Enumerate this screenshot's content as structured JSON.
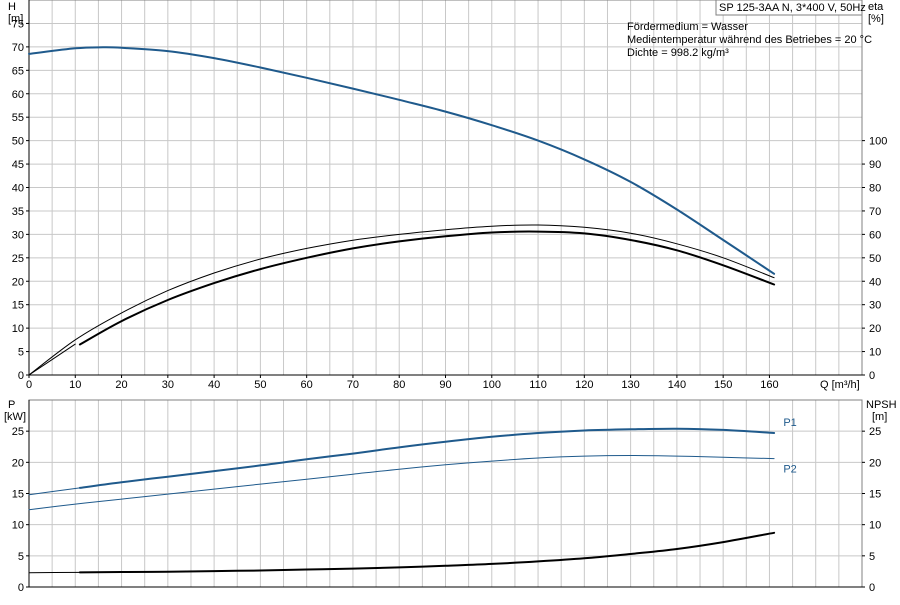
{
  "header": {
    "pump_model": "SP 125-3AA N, 3*400 V, 50Hz",
    "info_lines": [
      "Fördermedium = Wasser",
      "Medientemperatur während des Betriebes = 20 °C",
      "Dichte = 998.2 kg/m³"
    ]
  },
  "chart_data": [
    {
      "type": "line",
      "x_label": "Q [m³/h]",
      "x_ticks": [
        0,
        10,
        20,
        30,
        40,
        50,
        60,
        70,
        80,
        90,
        100,
        110,
        120,
        130,
        140,
        150,
        160
      ],
      "xlim": [
        0,
        180
      ],
      "y_left": {
        "name": "H",
        "unit": "[m]",
        "ticks": [
          0,
          5,
          10,
          15,
          20,
          25,
          30,
          35,
          40,
          45,
          50,
          55,
          60,
          65,
          70,
          75
        ],
        "lim": [
          0,
          80
        ]
      },
      "y_right": {
        "name": "eta",
        "unit": "[%]",
        "ticks": [
          0,
          10,
          20,
          30,
          40,
          50,
          60,
          70,
          80,
          90,
          100
        ],
        "lim": [
          0,
          160
        ]
      },
      "grid": true,
      "series": [
        {
          "axis": "left",
          "color": "#1f5a8c",
          "width": 2,
          "x": [
            0,
            10,
            16,
            20,
            30,
            40,
            50,
            60,
            70,
            80,
            90,
            100,
            110,
            120,
            130,
            140,
            150,
            161
          ],
          "y": [
            68.5,
            69.7,
            69.9,
            69.8,
            69.1,
            67.6,
            65.6,
            63.4,
            61.1,
            58.7,
            56.2,
            53.3,
            50.0,
            46.0,
            41.2,
            35.3,
            28.8,
            21.6
          ]
        },
        {
          "axis": "right",
          "color": "#000000",
          "width": 1,
          "x": [
            0,
            10,
            20,
            30,
            40,
            50,
            60,
            70,
            80,
            90,
            100,
            110,
            120,
            130,
            140,
            150,
            161
          ],
          "y": [
            0,
            15,
            26.5,
            36,
            43.5,
            49.5,
            54,
            57.5,
            60,
            62,
            63.5,
            64,
            63,
            60.5,
            56,
            50,
            41.5
          ]
        },
        {
          "axis": "left",
          "color": "#000000",
          "width": 2,
          "x": [
            11,
            20,
            30,
            40,
            50,
            60,
            70,
            80,
            90,
            100,
            110,
            120,
            130,
            140,
            150,
            161
          ],
          "y": [
            6.5,
            11.5,
            16.0,
            19.6,
            22.6,
            25.0,
            27.0,
            28.5,
            29.6,
            30.4,
            30.6,
            30.2,
            28.8,
            26.6,
            23.4,
            19.3
          ]
        },
        {
          "axis": "left",
          "color": "#000000",
          "width": 1,
          "x": [
            0,
            10
          ],
          "y": [
            0,
            6.6
          ]
        }
      ]
    },
    {
      "type": "line",
      "xlim": [
        0,
        180
      ],
      "x_ticks": [
        0,
        10,
        20,
        30,
        40,
        50,
        60,
        70,
        80,
        90,
        100,
        110,
        120,
        130,
        140,
        150,
        160
      ],
      "y_left": {
        "name": "P",
        "unit": "[kW]",
        "ticks": [
          0,
          5,
          10,
          15,
          20,
          25
        ],
        "lim": [
          0,
          30
        ]
      },
      "y_right": {
        "name": "NPSH",
        "unit": "[m]",
        "ticks": [
          0,
          5,
          10,
          15,
          20,
          25
        ],
        "lim": [
          0,
          30
        ]
      },
      "grid": true,
      "series": [
        {
          "name": "P1",
          "axis": "left",
          "color": "#1f5a8c",
          "width": 2,
          "x": [
            11,
            20,
            30,
            40,
            50,
            60,
            70,
            80,
            90,
            100,
            110,
            120,
            130,
            140,
            150,
            161
          ],
          "y": [
            15.9,
            16.8,
            17.7,
            18.6,
            19.5,
            20.5,
            21.4,
            22.4,
            23.3,
            24.1,
            24.7,
            25.1,
            25.3,
            25.4,
            25.2,
            24.7
          ]
        },
        {
          "axis": "left",
          "color": "#1f5a8c",
          "width": 1,
          "x": [
            0,
            11
          ],
          "y": [
            14.8,
            15.9
          ]
        },
        {
          "name": "P2",
          "axis": "left",
          "color": "#1f5a8c",
          "width": 1,
          "x": [
            0,
            10,
            20,
            30,
            40,
            50,
            60,
            70,
            80,
            90,
            100,
            110,
            120,
            130,
            140,
            150,
            161
          ],
          "y": [
            12.4,
            13.3,
            14.1,
            14.9,
            15.7,
            16.5,
            17.3,
            18.1,
            18.9,
            19.6,
            20.2,
            20.7,
            21.0,
            21.1,
            21.0,
            20.8,
            20.6
          ]
        },
        {
          "axis": "right",
          "color": "#000000",
          "width": 2,
          "x": [
            11,
            20,
            30,
            40,
            50,
            60,
            70,
            80,
            90,
            100,
            110,
            120,
            130,
            140,
            150,
            161
          ],
          "y": [
            2.35,
            2.4,
            2.45,
            2.55,
            2.65,
            2.8,
            2.95,
            3.15,
            3.4,
            3.7,
            4.1,
            4.6,
            5.3,
            6.1,
            7.2,
            8.7
          ]
        },
        {
          "axis": "right",
          "color": "#000000",
          "width": 1,
          "x": [
            0,
            11
          ],
          "y": [
            2.3,
            2.35
          ]
        }
      ],
      "series_labels": [
        {
          "text": "P1",
          "x": 163,
          "y": 26.5,
          "color": "#1f5a8c"
        },
        {
          "text": "P2",
          "x": 163,
          "y": 19.0,
          "color": "#1f5a8c"
        }
      ]
    }
  ]
}
